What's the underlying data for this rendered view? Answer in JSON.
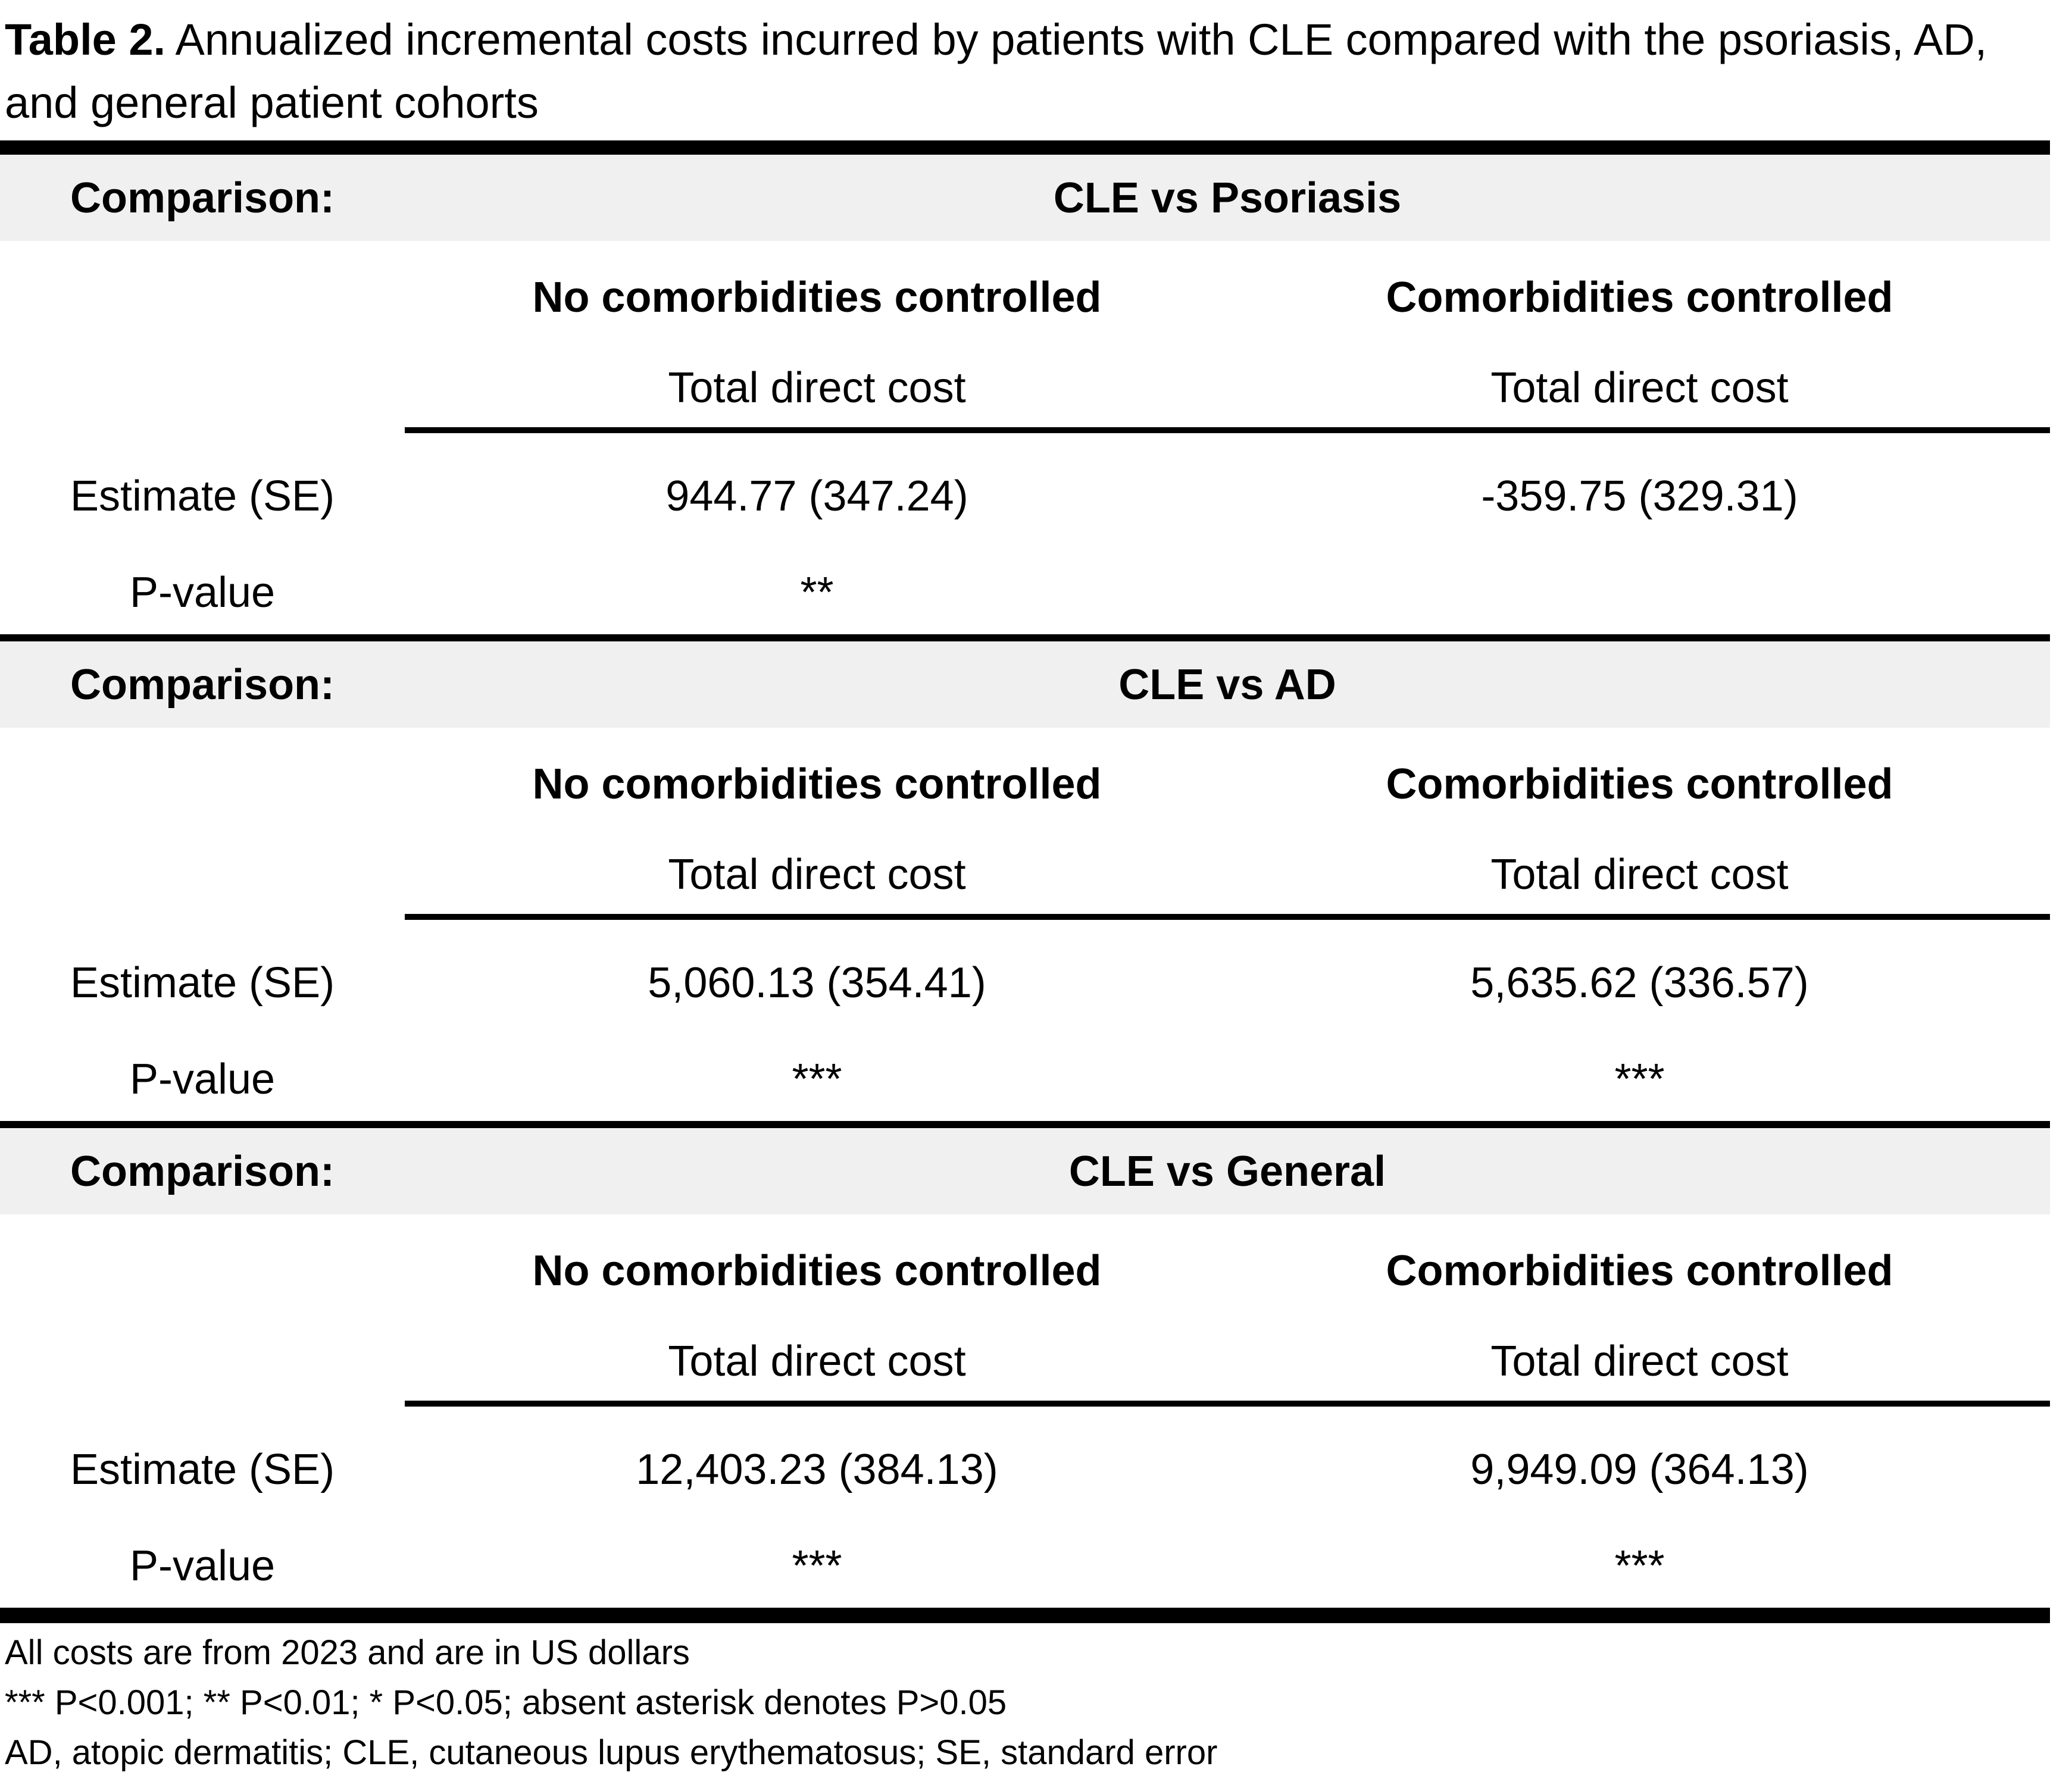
{
  "title": {
    "label": "Table 2.",
    "rest": " Annualized incremental costs incurred by patients with CLE compared with the psoriasis, AD, and general patient cohorts"
  },
  "row_labels": {
    "comparison": "Comparison:",
    "estimate": "Estimate (SE)",
    "pvalue": "P-value"
  },
  "column_headers": {
    "no_comorbidities": "No comorbidities controlled",
    "comorbidities": "Comorbidities controlled",
    "subheader": "Total direct cost"
  },
  "sections": [
    {
      "comparison": "CLE vs Psoriasis",
      "estimate_no_comorbidities": "944.77 (347.24)",
      "estimate_comorbidities": "-359.75 (329.31)",
      "pvalue_no_comorbidities": "**",
      "pvalue_comorbidities": ""
    },
    {
      "comparison": "CLE vs AD",
      "estimate_no_comorbidities": "5,060.13 (354.41)",
      "estimate_comorbidities": "5,635.62 (336.57)",
      "pvalue_no_comorbidities": "***",
      "pvalue_comorbidities": "***"
    },
    {
      "comparison": "CLE vs General",
      "estimate_no_comorbidities": "12,403.23 (384.13)",
      "estimate_comorbidities": "9,949.09 (364.13)",
      "pvalue_no_comorbidities": "***",
      "pvalue_comorbidities": "***"
    }
  ],
  "footnotes": [
    "All costs are from 2023 and are in US dollars",
    "*** P<0.001; ** P<0.01; * P<0.05; absent asterisk denotes P>0.05",
    "AD, atopic dermatitis; CLE, cutaneous lupus erythematosus; SE, standard error"
  ],
  "colors": {
    "band_background": "#f0f0f0",
    "text": "#000000",
    "rule": "#000000"
  }
}
